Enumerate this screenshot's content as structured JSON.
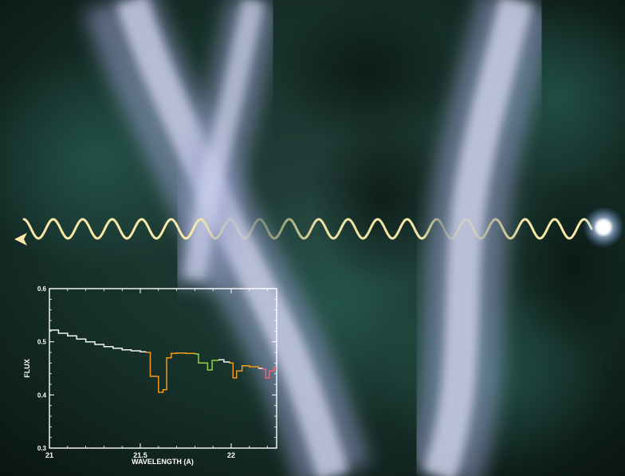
{
  "scene": {
    "colors": {
      "background_dark": "#0d1714",
      "background_teal": "#1f3f3a",
      "filament": "#c9cde8",
      "wave": "#f5e6a0",
      "star": "#ffffff",
      "inset_frame": "#ffffff",
      "spectrum_white": "#f2f2f2",
      "spectrum_orange": "#f29a1a",
      "spectrum_green": "#8fd14f",
      "spectrum_red": "#ff5a6e"
    },
    "icons": {
      "arrowhead": "arrow-left-icon",
      "source": "bright-star-icon"
    }
  },
  "chart_data": {
    "type": "line",
    "title": "",
    "xlabel": "WAVELENGTH (A)",
    "ylabel": "FLUX",
    "xlim": [
      21.0,
      22.25
    ],
    "ylim": [
      0.3,
      0.6
    ],
    "xticks": [
      21,
      21.5,
      22
    ],
    "xtick_labels": [
      "21",
      "21.5",
      "22"
    ],
    "yticks": [
      0.3,
      0.4,
      0.5,
      0.6
    ],
    "ytick_labels": [
      "0.3",
      "0.4",
      "0.5",
      "0.6"
    ],
    "step": true,
    "grid": false,
    "series": [
      {
        "color": "#f2f2f2",
        "x": [
          21.0,
          21.05,
          21.1,
          21.15,
          21.2,
          21.25,
          21.3,
          21.35,
          21.4,
          21.45,
          21.5,
          21.53
        ],
        "y": [
          0.522,
          0.516,
          0.511,
          0.505,
          0.5,
          0.495,
          0.491,
          0.488,
          0.485,
          0.483,
          0.481,
          0.48
        ]
      },
      {
        "color": "#f29a1a",
        "x": [
          21.53,
          21.555,
          21.575,
          21.6,
          21.625,
          21.645,
          21.67,
          21.7,
          21.75,
          21.8
        ],
        "y": [
          0.48,
          0.435,
          0.435,
          0.405,
          0.41,
          0.47,
          0.478,
          0.479,
          0.478,
          0.477
        ]
      },
      {
        "color": "#8fd14f",
        "x": [
          21.8,
          21.82,
          21.845,
          21.87,
          21.895,
          21.93
        ],
        "y": [
          0.477,
          0.46,
          0.46,
          0.447,
          0.465,
          0.466
        ]
      },
      {
        "color": "#f2f2f2",
        "x": [
          21.93,
          21.96,
          21.99
        ],
        "y": [
          0.466,
          0.462,
          0.46
        ]
      },
      {
        "color": "#f29a1a",
        "x": [
          21.99,
          22.01,
          22.03,
          22.06,
          22.1,
          22.15
        ],
        "y": [
          0.46,
          0.432,
          0.445,
          0.455,
          0.453,
          0.45
        ]
      },
      {
        "color": "#f2f2f2",
        "x": [
          22.15,
          22.17
        ],
        "y": [
          0.45,
          0.449
        ]
      },
      {
        "color": "#ff5a6e",
        "x": [
          22.17,
          22.19,
          22.21,
          22.235,
          22.25
        ],
        "y": [
          0.449,
          0.432,
          0.445,
          0.45,
          0.45
        ]
      }
    ]
  }
}
